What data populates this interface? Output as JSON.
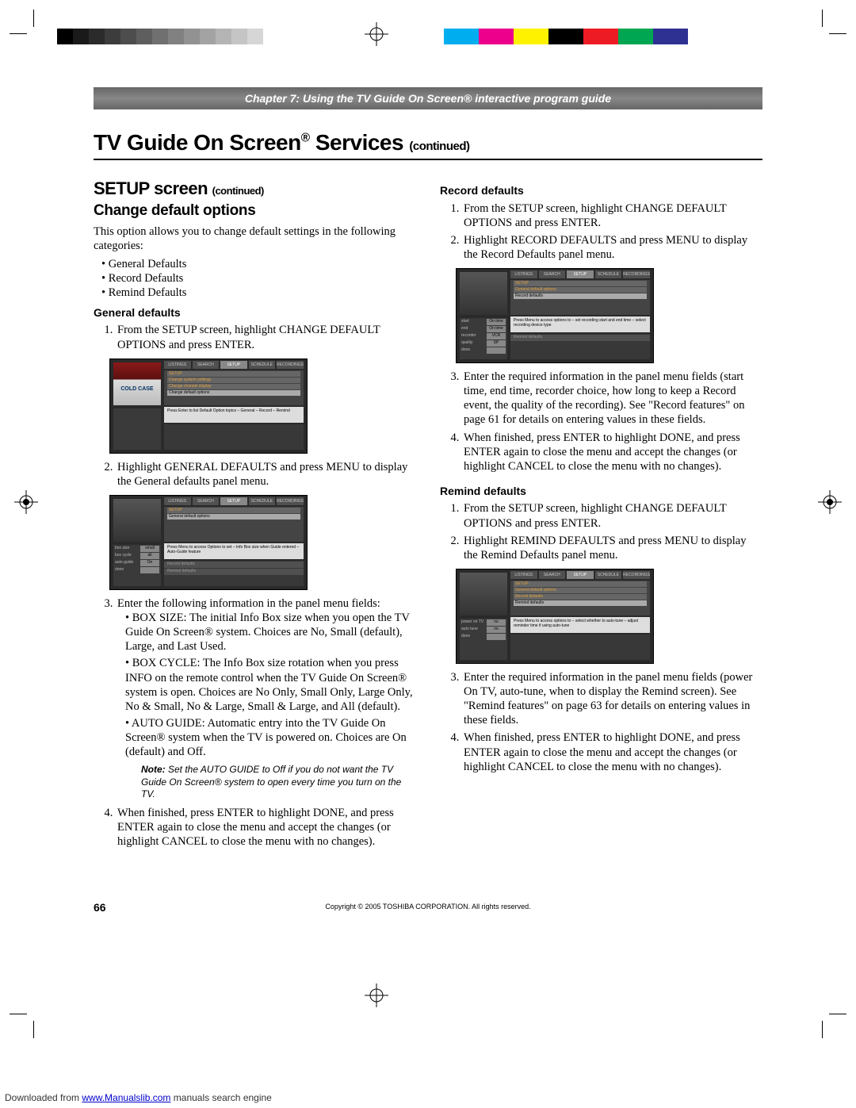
{
  "print": {
    "gray_swatches": [
      "#000000",
      "#1a1a1a",
      "#2b2b2b",
      "#3c3c3c",
      "#4d4d4d",
      "#5e5e5e",
      "#707070",
      "#818181",
      "#929292",
      "#a3a3a3",
      "#b4b4b4",
      "#c5c5c5",
      "#d6d6d6",
      "#ffffff"
    ],
    "color_swatches": [
      "#00aeef",
      "#ec008c",
      "#fff200",
      "#000000",
      "#ed1c24",
      "#00a651",
      "#2e3192",
      "#ffffff"
    ]
  },
  "chapter_bar": "Chapter 7: Using the TV Guide On Screen® interactive program guide",
  "main_heading": "TV Guide On Screen",
  "main_heading_reg": "®",
  "main_heading_tail": " Services ",
  "continued": "(continued)",
  "left": {
    "h2": "SETUP screen ",
    "h2_cont": "(continued)",
    "h3": "Change default options",
    "intro": "This option allows you to change default settings in the following categories:",
    "bullets": [
      "General Defaults",
      "Record Defaults",
      "Remind Defaults"
    ],
    "general": {
      "heading": "General defaults",
      "step1": "From the SETUP screen, highlight CHANGE DEFAULT OPTIONS and press ENTER.",
      "step2": "Highlight GENERAL DEFAULTS and press MENU to display the General defaults panel menu.",
      "step3": "Enter the following information in the panel menu fields:",
      "sub": [
        "BOX SIZE: The initial Info Box size when you open the TV Guide On Screen® system. Choices are No, Small (default), Large, and Last Used.",
        "BOX CYCLE: The Info Box size rotation when you press INFO on the remote control when the TV Guide On Screen® system is open. Choices are No Only, Small Only, Large Only, No & Small, No & Large, Small & Large, and All (default).",
        "AUTO GUIDE: Automatic entry into the TV Guide On Screen® system when the TV is powered on. Choices are On (default) and Off."
      ],
      "note_label": "Note:",
      "note": " Set the AUTO GUIDE to Off if you do not want the TV Guide On Screen® system to open every time you turn on the TV.",
      "step4": "When finished, press ENTER to highlight DONE, and press ENTER again to close the menu and accept the changes (or highlight CANCEL to close the menu with no changes)."
    }
  },
  "right": {
    "record": {
      "heading": "Record defaults",
      "step1": "From the SETUP screen, highlight CHANGE DEFAULT OPTIONS and press ENTER.",
      "step2": "Highlight RECORD DEFAULTS and press MENU to display the Record Defaults panel menu.",
      "step3": "Enter the required information in the panel menu fields (start time, end time, recorder choice, how long to keep a Record event, the quality of the recording). See \"Record features\" on page 61 for details on entering values in these fields.",
      "step4": "When finished, press ENTER to highlight DONE, and press ENTER again to close the menu and accept the changes (or highlight CANCEL to close the menu with no changes)."
    },
    "remind": {
      "heading": "Remind defaults",
      "step1": "From the SETUP screen, highlight CHANGE DEFAULT OPTIONS and press ENTER.",
      "step2": "Highlight REMIND DEFAULTS and press MENU to display the Remind Defaults panel menu.",
      "step3": "Enter the required information in the panel menu fields (power On TV, auto-tune, when to display the Remind screen). See \"Remind features\" on page 63 for details on entering values in these fields.",
      "step4": "When finished, press ENTER to highlight DONE, and press ENTER again to close the menu and accept the changes (or highlight CANCEL to close the menu with no changes)."
    }
  },
  "screenshots": {
    "tabs": [
      "LISTINGS",
      "SEARCH",
      "SETUP",
      "SCHEDULE",
      "RECORDINGS"
    ],
    "ss1": {
      "menu": [
        "SETUP",
        "Change system settings",
        "Change channel display",
        "Change default options"
      ],
      "tip": "Press Enter to list Default Option topics\n   – General\n   – Record\n   – Remind"
    },
    "ss2": {
      "menu": [
        "SETUP",
        "General default options"
      ],
      "tip": "Press Menu to access Options to set\n – Info Box size when Guide entered\n – Auto-Guide feature",
      "side_opts": [
        [
          "box size",
          "small"
        ],
        [
          "box cycle",
          "all"
        ],
        [
          "auto guide",
          "On"
        ],
        [
          "done",
          ""
        ]
      ],
      "rows": [
        "Record defaults",
        "Remind defaults"
      ]
    },
    "ss3": {
      "menu": [
        "SETUP",
        "General default options",
        "Record defaults"
      ],
      "tip": "Press Menu to access options to\n – set recording start and end time\n – select recording device type",
      "side_opts": [
        [
          "start",
          "On time"
        ],
        [
          "end",
          "On time"
        ],
        [
          "recorder",
          "VCR"
        ],
        [
          "quality",
          "SP"
        ],
        [
          "done",
          ""
        ]
      ],
      "rows": [
        "Remind defaults"
      ]
    },
    "ss4": {
      "menu": [
        "SETUP",
        "General default options",
        "Record defaults",
        "Remind defaults"
      ],
      "tip": "Press Menu to access options to\n – select whether to auto-tune\n – adjust reminder time if using auto-tune",
      "side_opts": [
        [
          "power on TV",
          "no"
        ],
        [
          "auto tune",
          "no"
        ],
        [
          "done",
          ""
        ]
      ]
    }
  },
  "page_number": "66",
  "copyright": "Copyright © 2005 TOSHIBA CORPORATION. All rights reserved.",
  "footer": {
    "pre": "Downloaded from ",
    "link": "www.Manualslib.com",
    "post": " manuals search engine"
  }
}
